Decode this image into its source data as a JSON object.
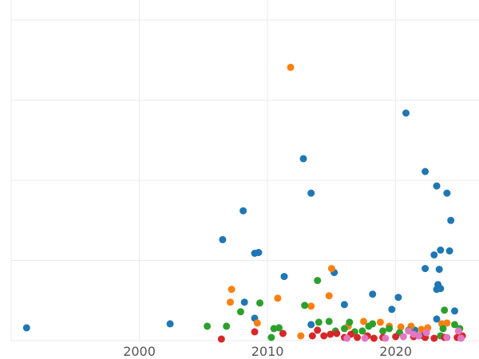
{
  "chart_data": {
    "type": "scatter",
    "title": "",
    "xlabel": "",
    "ylabel": "",
    "xlim": [
      1990,
      2026.5
    ],
    "ylim": [
      0,
      42.5
    ],
    "x_ticks": [
      2000,
      2010,
      2020
    ],
    "x_tick_labels": [
      "2000",
      "2010",
      "2020"
    ],
    "y_ticks": [
      0,
      10,
      20,
      30,
      40
    ],
    "grid": true,
    "legend": "none",
    "series": [
      {
        "color": "#1f77b4",
        "points": [
          [
            1991.2,
            1.6
          ],
          [
            2002.4,
            2.1
          ],
          [
            2006.5,
            12.6
          ],
          [
            2008.1,
            16.2
          ],
          [
            2009.0,
            10.9
          ],
          [
            2009.3,
            11.0
          ],
          [
            2008.2,
            4.8
          ],
          [
            2009.0,
            2.8
          ],
          [
            2011.3,
            8.0
          ],
          [
            2012.8,
            22.7
          ],
          [
            2013.4,
            18.4
          ],
          [
            2013.4,
            2.0
          ],
          [
            2015.2,
            8.5
          ],
          [
            2016.0,
            4.5
          ],
          [
            2018.2,
            5.8
          ],
          [
            2019.7,
            3.9
          ],
          [
            2020.2,
            5.4
          ],
          [
            2020.8,
            28.4
          ],
          [
            2022.3,
            21.1
          ],
          [
            2023.2,
            19.3
          ],
          [
            2024.0,
            18.4
          ],
          [
            2024.3,
            15.0
          ],
          [
            2023.0,
            10.7
          ],
          [
            2023.5,
            11.3
          ],
          [
            2024.2,
            11.2
          ],
          [
            2022.3,
            9.0
          ],
          [
            2023.4,
            8.9
          ],
          [
            2023.3,
            7.0
          ],
          [
            2023.5,
            6.5
          ],
          [
            2023.2,
            6.4
          ],
          [
            2024.6,
            3.7
          ],
          [
            2023.2,
            2.7
          ],
          [
            2021.5,
            1.3
          ],
          [
            2022.1,
            0.6
          ],
          [
            2024.9,
            0.5
          ]
        ]
      },
      {
        "color": "#ff7f0e",
        "points": [
          [
            2011.8,
            34.1
          ],
          [
            2007.2,
            6.4
          ],
          [
            2007.1,
            4.8
          ],
          [
            2009.2,
            2.2
          ],
          [
            2010.8,
            5.3
          ],
          [
            2012.6,
            0.6
          ],
          [
            2013.4,
            4.3
          ],
          [
            2014.8,
            5.6
          ],
          [
            2015.0,
            9.0
          ],
          [
            2016.3,
            1.8
          ],
          [
            2017.5,
            2.4
          ],
          [
            2018.8,
            2.3
          ],
          [
            2019.5,
            1.8
          ],
          [
            2020.4,
            1.7
          ],
          [
            2021.2,
            1.8
          ],
          [
            2022.0,
            1.4
          ],
          [
            2022.5,
            1.6
          ],
          [
            2023.6,
            2.1
          ],
          [
            2024.0,
            2.2
          ],
          [
            2025.0,
            0.7
          ]
        ]
      },
      {
        "color": "#2ca02c",
        "points": [
          [
            2005.3,
            1.8
          ],
          [
            2006.8,
            1.8
          ],
          [
            2007.9,
            3.6
          ],
          [
            2009.4,
            4.7
          ],
          [
            2010.3,
            0.4
          ],
          [
            2010.5,
            1.5
          ],
          [
            2010.9,
            1.6
          ],
          [
            2012.9,
            4.4
          ],
          [
            2013.9,
            7.5
          ],
          [
            2014.0,
            2.3
          ],
          [
            2014.8,
            2.4
          ],
          [
            2015.3,
            1.2
          ],
          [
            2016.0,
            1.5
          ],
          [
            2016.4,
            2.3
          ],
          [
            2016.8,
            1.1
          ],
          [
            2017.4,
            1.2
          ],
          [
            2017.9,
            1.8
          ],
          [
            2018.2,
            2.1
          ],
          [
            2019.0,
            1.2
          ],
          [
            2019.5,
            1.5
          ],
          [
            2020.3,
            1.0
          ],
          [
            2021.0,
            1.3
          ],
          [
            2023.7,
            1.5
          ],
          [
            2023.8,
            3.8
          ],
          [
            2024.6,
            2.0
          ],
          [
            2025.0,
            1.5
          ],
          [
            2023.5,
            0.6
          ]
        ]
      },
      {
        "color": "#d62728",
        "points": [
          [
            2006.4,
            0.2
          ],
          [
            2009.0,
            1.1
          ],
          [
            2011.2,
            0.9
          ],
          [
            2013.5,
            0.6
          ],
          [
            2013.9,
            1.3
          ],
          [
            2014.4,
            0.6
          ],
          [
            2014.9,
            0.8
          ],
          [
            2015.4,
            0.9
          ],
          [
            2016.0,
            0.4
          ],
          [
            2016.5,
            0.8
          ],
          [
            2017.0,
            0.4
          ],
          [
            2017.8,
            0.6
          ],
          [
            2018.3,
            0.3
          ],
          [
            2019.0,
            0.4
          ],
          [
            2020.0,
            0.5
          ],
          [
            2021.4,
            0.5
          ],
          [
            2022.3,
            0.4
          ],
          [
            2023.0,
            0.3
          ],
          [
            2023.8,
            0.4
          ],
          [
            2024.8,
            0.4
          ],
          [
            2025.2,
            0.6
          ]
        ]
      },
      {
        "color": "#e377c2",
        "points": [
          [
            2016.2,
            0.3
          ],
          [
            2017.6,
            0.3
          ],
          [
            2019.2,
            0.3
          ],
          [
            2020.6,
            0.5
          ],
          [
            2021.0,
            1.2
          ],
          [
            2021.4,
            0.8
          ],
          [
            2021.8,
            0.6
          ],
          [
            2022.4,
            1.0
          ],
          [
            2024.0,
            0.4
          ],
          [
            2024.9,
            1.2
          ],
          [
            2025.1,
            0.3
          ]
        ]
      }
    ]
  }
}
